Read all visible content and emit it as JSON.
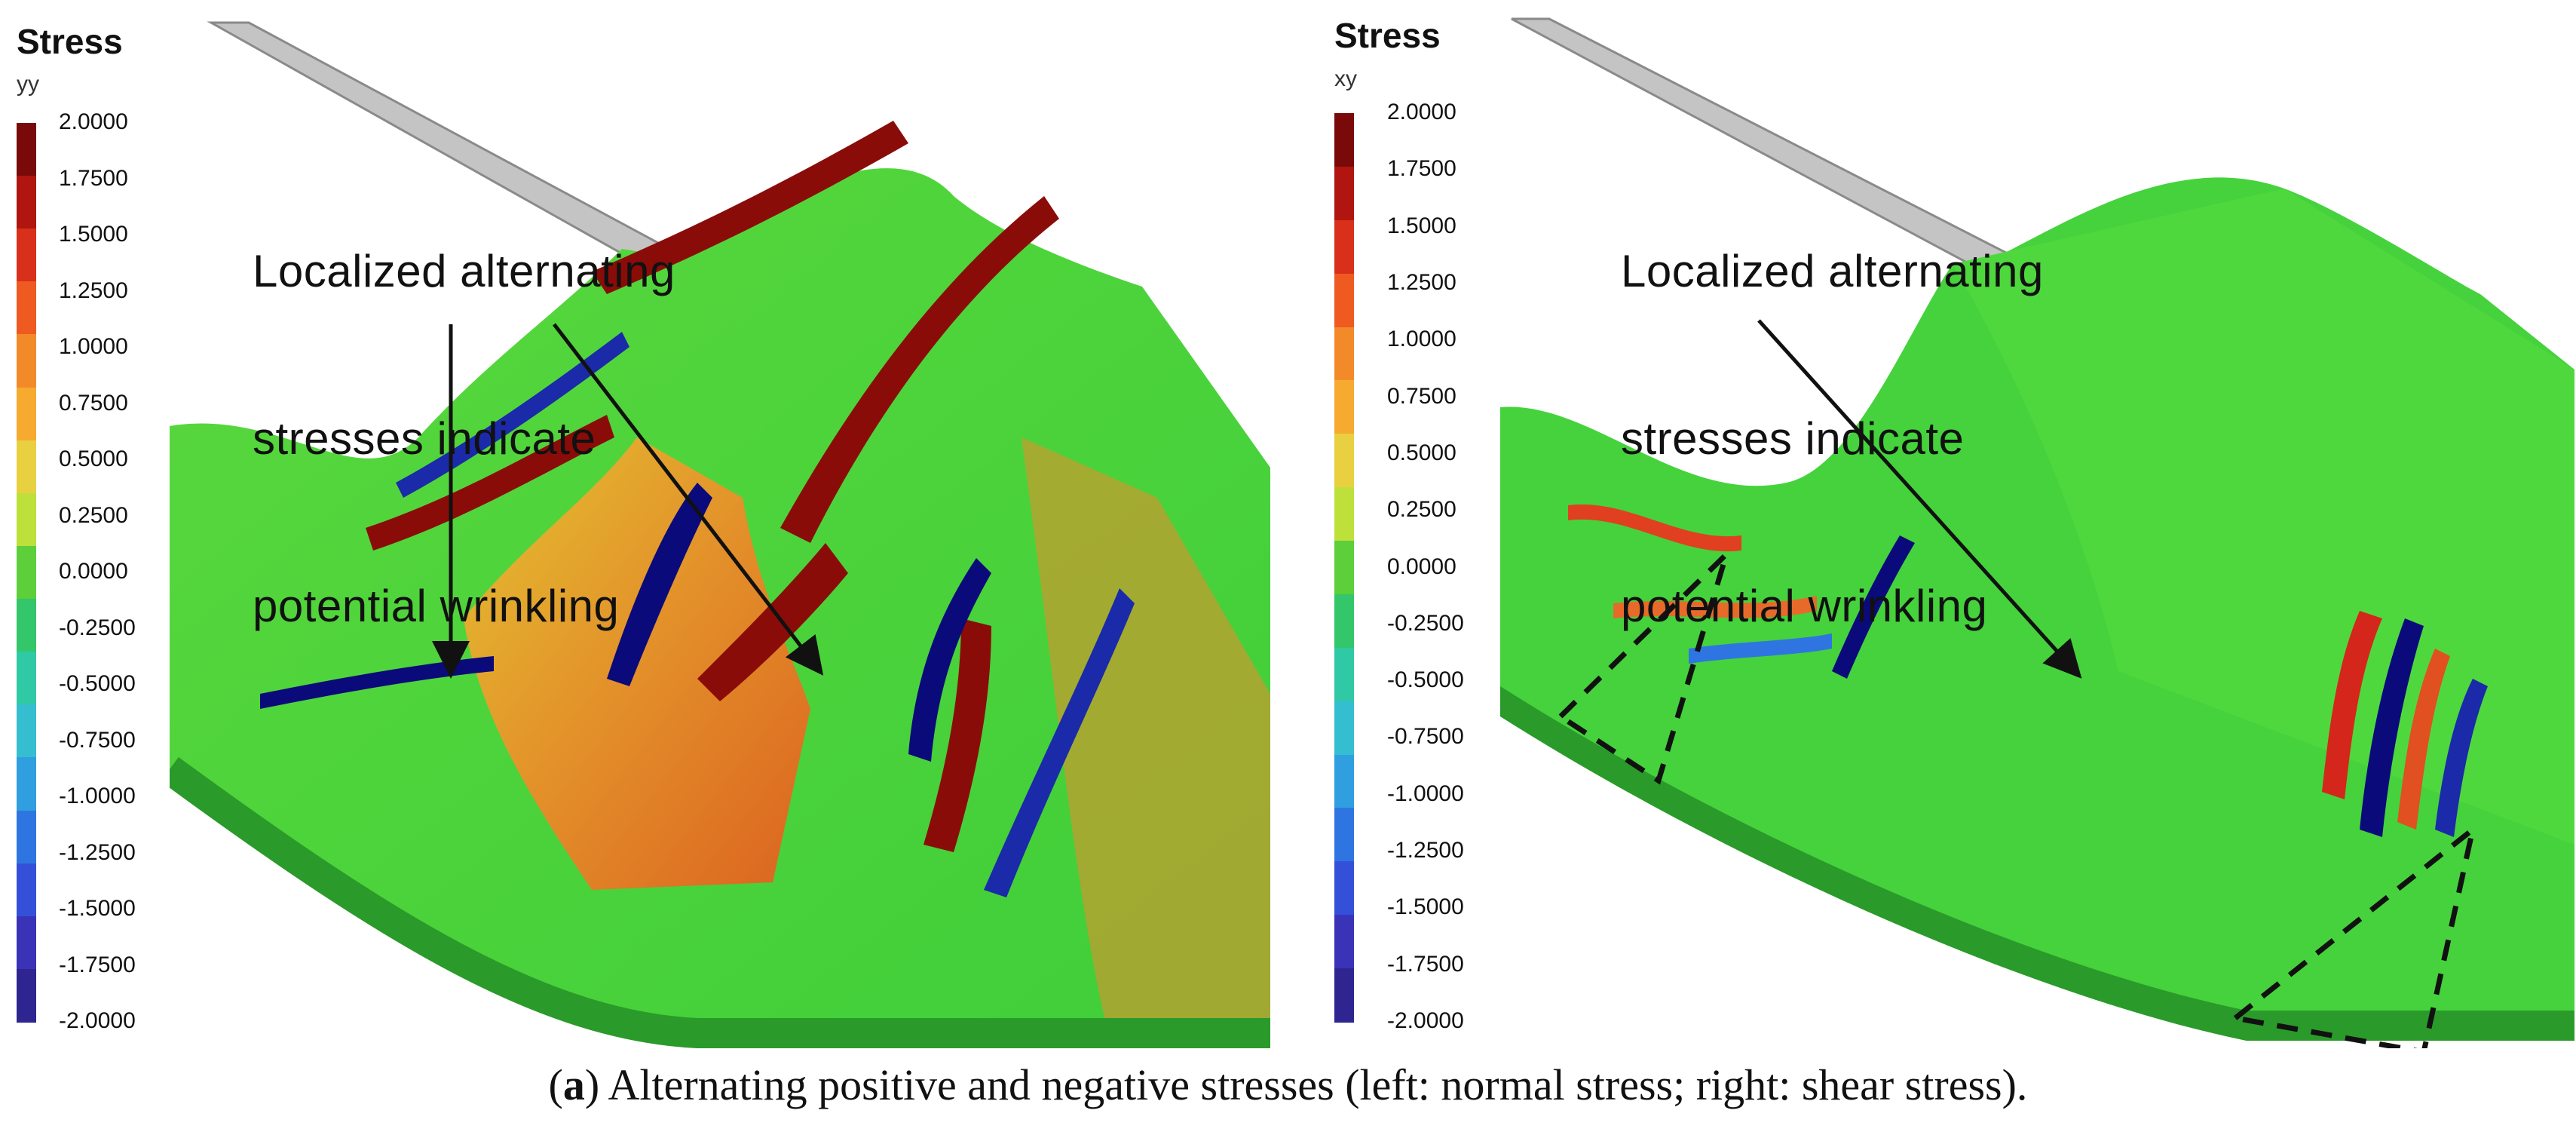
{
  "figure": {
    "left_panel": {
      "legend": {
        "title": "Stress",
        "component": "yy",
        "ticks": [
          "2.0000",
          "1.7500",
          "1.5000",
          "1.2500",
          "1.0000",
          "0.7500",
          "0.5000",
          "0.2500",
          "0.0000",
          "-0.2500",
          "-0.5000",
          "-0.7500",
          "-1.0000",
          "-1.2500",
          "-1.5000",
          "-1.7500",
          "-2.0000"
        ]
      },
      "annotation_lines": [
        "Localized alternating",
        "stresses indicate",
        "potential wrinkling"
      ]
    },
    "right_panel": {
      "legend": {
        "title": "Stress",
        "component": "xy",
        "ticks": [
          "2.0000",
          "1.7500",
          "1.5000",
          "1.2500",
          "1.0000",
          "0.7500",
          "0.5000",
          "0.2500",
          "0.0000",
          "-0.2500",
          "-0.5000",
          "-0.7500",
          "-1.0000",
          "-1.2500",
          "-1.5000",
          "-1.7500",
          "-2.0000"
        ]
      },
      "annotation_lines": [
        "Localized alternating",
        "stresses indicate",
        "potential wrinkling"
      ]
    },
    "caption": {
      "label_open": "(",
      "label_letter": "a",
      "label_close": ")",
      "text": " Alternating positive and negative stresses (left: normal stress; right: shear stress)."
    }
  },
  "colors": {
    "colorbar": [
      "#7a0a0a",
      "#b01510",
      "#d8301a",
      "#ee5a20",
      "#f38a2a",
      "#f6aa30",
      "#e8d040",
      "#bde03a",
      "#5ccf3a",
      "#33c66a",
      "#2fc9a5",
      "#34bed0",
      "#2f9fe0",
      "#2f75e2",
      "#3550d8",
      "#3a33b8",
      "#2f2590"
    ],
    "surface_green": "#3fd23a",
    "surface_dark_green": "#2a9a2a",
    "high_red": "#8a0c08",
    "low_blue": "#0a0a7a"
  }
}
